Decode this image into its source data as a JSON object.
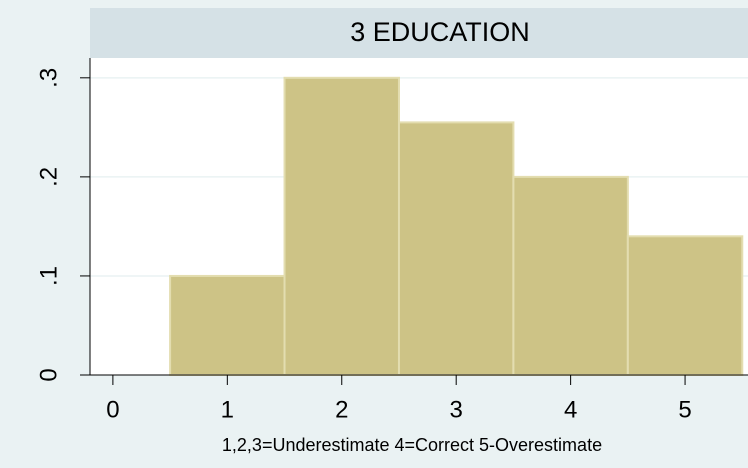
{
  "chart_data": {
    "type": "histogram",
    "title": "3 EDUCATION",
    "xlabel": "1,2,3=Underestimate   4=Correct   5-Overestimate",
    "bins": [
      0.5,
      1.5,
      2.5,
      3.5,
      4.5,
      5.5
    ],
    "values": [
      0.1,
      0.3,
      0.255,
      0.2,
      0.14
    ],
    "color": "#cdc386",
    "xlim": [
      -0.2,
      5.55
    ],
    "xticks": [
      0,
      1,
      2,
      3,
      4,
      5
    ],
    "ylim": [
      0,
      0.32
    ],
    "yticks": [
      0,
      {
        "value": 0.1,
        "label": ".1"
      },
      {
        "value": 0.2,
        "label": ".2"
      },
      {
        "value": 0.3,
        "label": ".3"
      }
    ],
    "grid": true
  }
}
